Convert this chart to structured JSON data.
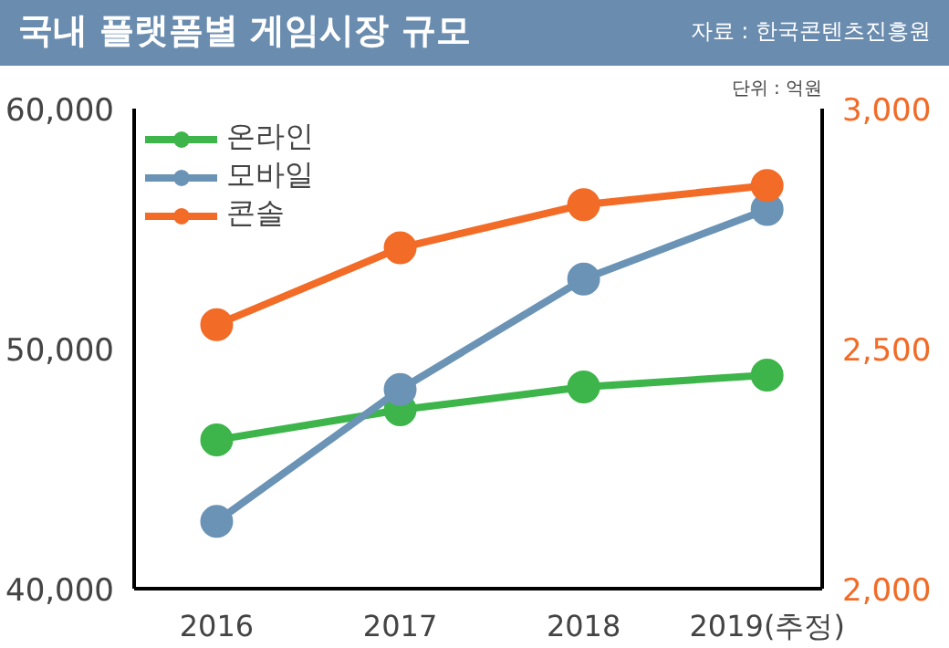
{
  "chart_data": {
    "type": "line",
    "title": "국내 플랫폼별 게임시장 규모",
    "subtitle": "자료 : 한국콘텐츠진흥원",
    "annotations": [
      "단위 : 억원"
    ],
    "categories": [
      "2016",
      "2017",
      "2018",
      "2019(추정)"
    ],
    "series": [
      {
        "name": "온라인",
        "color": "#3db54a",
        "values": [
          46200,
          47450,
          48400,
          48900
        ]
      },
      {
        "name": "모바일",
        "color": "#6a93b5",
        "values": [
          42800,
          48300,
          52900,
          55800
        ]
      },
      {
        "name": "콘솔",
        "color": "#f26b27",
        "values": [
          2550,
          2710,
          2800,
          2840
        ],
        "axis": "y2"
      }
    ],
    "ylim": [
      40000,
      60000
    ],
    "yticks": [
      {
        "value": 40000,
        "label": "40,000"
      },
      {
        "value": 50000,
        "label": "50,000"
      },
      {
        "value": 60000,
        "label": "60,000"
      }
    ],
    "y2lim": [
      2000,
      3000
    ],
    "y2ticks": [
      {
        "value": 2000,
        "label": "2,000"
      },
      {
        "value": 2500,
        "label": "2,500"
      },
      {
        "value": 3000,
        "label": "3,000"
      }
    ],
    "marker": "circle",
    "grid": false,
    "legend": "top left"
  }
}
